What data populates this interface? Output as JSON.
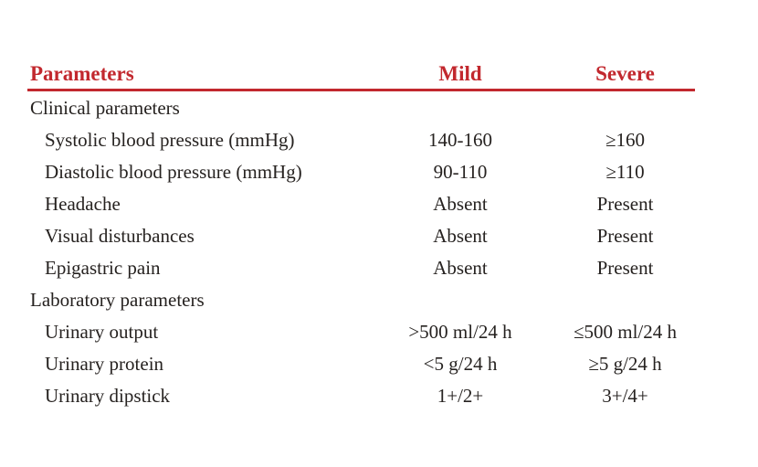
{
  "table": {
    "accent_color": "#c2282e",
    "text_color": "#262220",
    "columns": [
      "Parameters",
      "Mild",
      "Severe"
    ],
    "rows": [
      {
        "type": "section",
        "label": "Clinical parameters",
        "mild": "",
        "severe": ""
      },
      {
        "type": "item",
        "label": "Systolic blood pressure (mmHg)",
        "mild": "140-160",
        "severe": "≥160"
      },
      {
        "type": "item",
        "label": "Diastolic blood pressure (mmHg)",
        "mild": "90-110",
        "severe": "≥110"
      },
      {
        "type": "item",
        "label": "Headache",
        "mild": "Absent",
        "severe": "Present"
      },
      {
        "type": "item",
        "label": "Visual disturbances",
        "mild": "Absent",
        "severe": "Present"
      },
      {
        "type": "item",
        "label": "Epigastric pain",
        "mild": "Absent",
        "severe": "Present"
      },
      {
        "type": "section",
        "label": "Laboratory parameters",
        "mild": "",
        "severe": ""
      },
      {
        "type": "item",
        "label": "Urinary output",
        "mild": ">500 ml/24 h",
        "severe": "≤500 ml/24 h"
      },
      {
        "type": "item",
        "label": "Urinary protein",
        "mild": "<5 g/24 h",
        "severe": "≥5 g/24 h"
      },
      {
        "type": "item",
        "label": "Urinary dipstick",
        "mild": "1+/2+",
        "severe": "3+/4+"
      }
    ]
  }
}
